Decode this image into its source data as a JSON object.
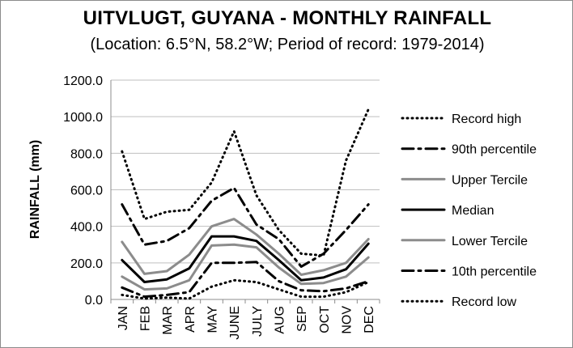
{
  "chart_data": {
    "type": "line",
    "title": "UITVLUGT, GUYANA - MONTHLY RAINFALL",
    "subtitle": "(Location: 6.5°N, 58.2°W; Period of record: 1979-2014)",
    "xlabel": "",
    "ylabel": "RAINFALL (mm)",
    "ylim": [
      0,
      1200
    ],
    "ytick_step": 200,
    "ytick_labels": [
      "0.0",
      "200.0",
      "400.0",
      "600.0",
      "800.0",
      "1000.0",
      "1200.0"
    ],
    "categories": [
      "JAN",
      "FEB",
      "MAR",
      "APR",
      "MAY",
      "JUNE",
      "JULY",
      "AUG",
      "SEP",
      "OCT",
      "NOV",
      "DEC"
    ],
    "grid": "horizontal",
    "legend_position": "right",
    "series": [
      {
        "name": "Record high",
        "color": "#000000",
        "style": "dotted",
        "width": 3,
        "values": [
          810,
          440,
          480,
          490,
          640,
          920,
          570,
          380,
          250,
          240,
          760,
          1040
        ]
      },
      {
        "name": "90th percentile",
        "color": "#000000",
        "style": "dashdot",
        "width": 3,
        "values": [
          520,
          300,
          320,
          390,
          540,
          610,
          410,
          330,
          180,
          250,
          380,
          520
        ]
      },
      {
        "name": "Upper Tercile",
        "color": "#8c8c8c",
        "style": "solid",
        "width": 3,
        "values": [
          315,
          140,
          155,
          245,
          400,
          440,
          355,
          250,
          135,
          160,
          200,
          330
        ]
      },
      {
        "name": "Median",
        "color": "#000000",
        "style": "solid",
        "width": 3,
        "values": [
          215,
          95,
          110,
          170,
          345,
          345,
          320,
          215,
          105,
          120,
          165,
          305
        ]
      },
      {
        "name": "Lower Tercile",
        "color": "#8c8c8c",
        "style": "solid",
        "width": 3,
        "values": [
          125,
          55,
          60,
          105,
          295,
          300,
          285,
          175,
          85,
          90,
          125,
          230
        ]
      },
      {
        "name": "10th percentile",
        "color": "#000000",
        "style": "dashdot",
        "width": 3,
        "values": [
          65,
          15,
          25,
          40,
          200,
          200,
          205,
          100,
          50,
          45,
          60,
          100
        ]
      },
      {
        "name": "Record low",
        "color": "#000000",
        "style": "dotted",
        "width": 3,
        "values": [
          25,
          5,
          10,
          5,
          70,
          105,
          95,
          55,
          15,
          15,
          40,
          95
        ]
      }
    ]
  }
}
